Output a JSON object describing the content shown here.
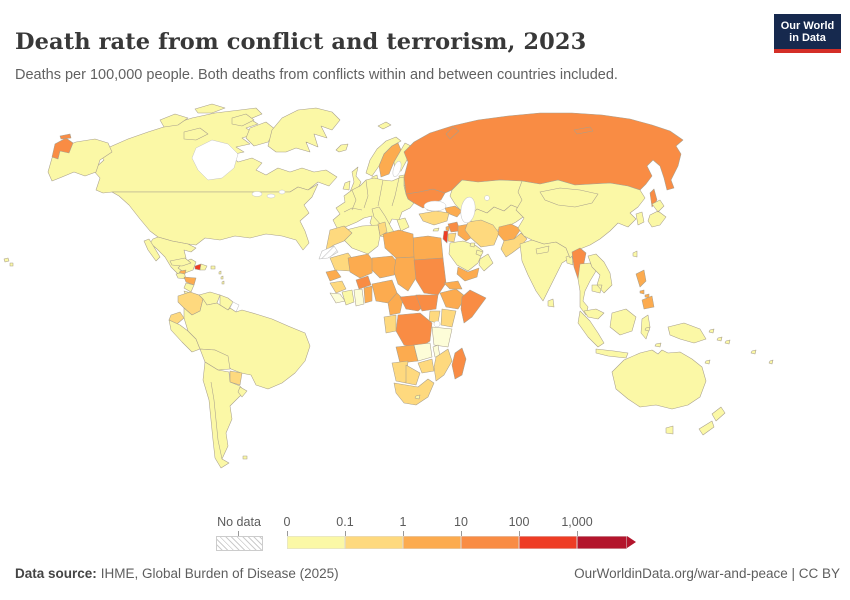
{
  "header": {
    "title": "Death rate from conflict and terrorism, 2023",
    "subtitle": "Deaths per 100,000 people. Both deaths from conflicts within and between countries included.",
    "logo_line1": "Our World",
    "logo_line2": "in Data",
    "logo_bg": "#16294e",
    "logo_accent": "#d42f27"
  },
  "legend": {
    "no_data_label": "No data",
    "tick_labels": [
      "0",
      "0.1",
      "1",
      "10",
      "100",
      "1,000"
    ]
  },
  "footer": {
    "source_label": "Data source:",
    "source_text": "IHME, Global Burden of Disease (2025)",
    "right_text": "OurWorldinData.org/war-and-peace | CC BY"
  },
  "chart_data": {
    "type": "choropleth",
    "title": "Death rate from conflict and terrorism, 2023",
    "unit": "deaths per 100,000 people",
    "legend_position": "bottom",
    "bin_edge_labels": [
      "0",
      "0.1",
      "1",
      "10",
      "100",
      "1,000"
    ],
    "bins": [
      {
        "label": "0–0.1",
        "color": "#fbf8a6"
      },
      {
        "label": "0.1–1",
        "color": "#fed97e"
      },
      {
        "label": "1–10",
        "color": "#fcab4f"
      },
      {
        "label": "10–100",
        "color": "#f98c44"
      },
      {
        "label": "100–1,000",
        "color": "#ee3c24"
      },
      {
        "label": "1,000+",
        "color": "#b3152c"
      }
    ],
    "zero_color": "#fdfdd8",
    "no_data_color": "#ffffff",
    "hatch_color": "#cccccc",
    "countries_by_bin": {
      "CAN": 0,
      "CAN_ISLANDS": 0,
      "GRL": 0,
      "ALASKA": 0,
      "RUS_CHUKOTKA": 3,
      "USA": 0,
      "HAWAII": 0,
      "MEX": 0,
      "GTM": 0,
      "HND": 2,
      "NIC": 0,
      "CRI_PAN": 0,
      "CUB": 0,
      "HTI": 4,
      "DOM": 0,
      "JAM": 2,
      "PRI": 0,
      "ANTILLES": 0,
      "COL": 1,
      "VEN": 0,
      "GUY_SUR": 0,
      "GUF": "no-data",
      "ECU": 1,
      "PER": 0,
      "BRA": 0,
      "BOL": 0,
      "PRY": 1,
      "ARG_CHL": 0,
      "URY": 0,
      "FLK": 0,
      "ISL": 0,
      "SJM": 0,
      "GBR": 0,
      "IRL": 0,
      "NOR": 0,
      "SWE": 2,
      "FIN": 0,
      "DNK": 0,
      "BALTICS": 0,
      "BLR": 0,
      "EUROPE": 0,
      "ITA": 0,
      "GRC": 0,
      "UKR": 3,
      "RUS": 3,
      "RUS_SAKHALIN": 3,
      "RUS_NOVAYA": 3,
      "RUS_SEVERNAYA": 3,
      "KAZ": 0,
      "C_ASIA": 0,
      "CAUCASUS": 2,
      "TUR": 1,
      "CYP": 0,
      "SYR": 3,
      "LBN": 2,
      "ISR_PSE": 4,
      "JOR": 1,
      "IRQ": 2,
      "IRN": 1,
      "AFG": 2,
      "PAK": 1,
      "SAU": 0,
      "YEM": 2,
      "OMN": 0,
      "GULF_STATES": 0,
      "KWT": 0,
      "EGY": 2,
      "LBY": 2,
      "TUN": 1,
      "DZA": 0,
      "MAR": 1,
      "ESH": "hatch",
      "MRT": 1,
      "MLI": 2,
      "BFA": 3,
      "NER": 2,
      "TCD": 2,
      "SDN": 3,
      "SSD": 3,
      "SEN": 2,
      "GIN": 1,
      "SLE_LBR": "zero",
      "CIV": 0,
      "GHA": "zero",
      "TGO_BEN": 2,
      "NGA": 2,
      "CMR": 2,
      "CAF": 3,
      "ETH": 2,
      "ERI_DJI": 2,
      "SOM": 3,
      "KEN": 1,
      "UGA": 1,
      "COD": 3,
      "COG_GAB": 1,
      "TZA": "zero",
      "AGO": 2,
      "ZMB": "zero",
      "MWI": "zero",
      "MOZ": 1,
      "ZWE": 1,
      "NAM": 1,
      "BWA": 1,
      "ZAF": 1,
      "LSO": 0,
      "MDG": 3,
      "IND": 0,
      "LKA": 0,
      "NPL": 0,
      "BGD": 0,
      "CHN": 0,
      "KOR": 0,
      "JPN": 0,
      "TWN": 0,
      "MMR": 3,
      "THA": 0,
      "INDOCHINA": 0,
      "MYS": 0,
      "IDN": 0,
      "PHL": 2,
      "PNG": 0,
      "AUS": 0,
      "NZL": 0,
      "PACIFIC": 0
    }
  }
}
